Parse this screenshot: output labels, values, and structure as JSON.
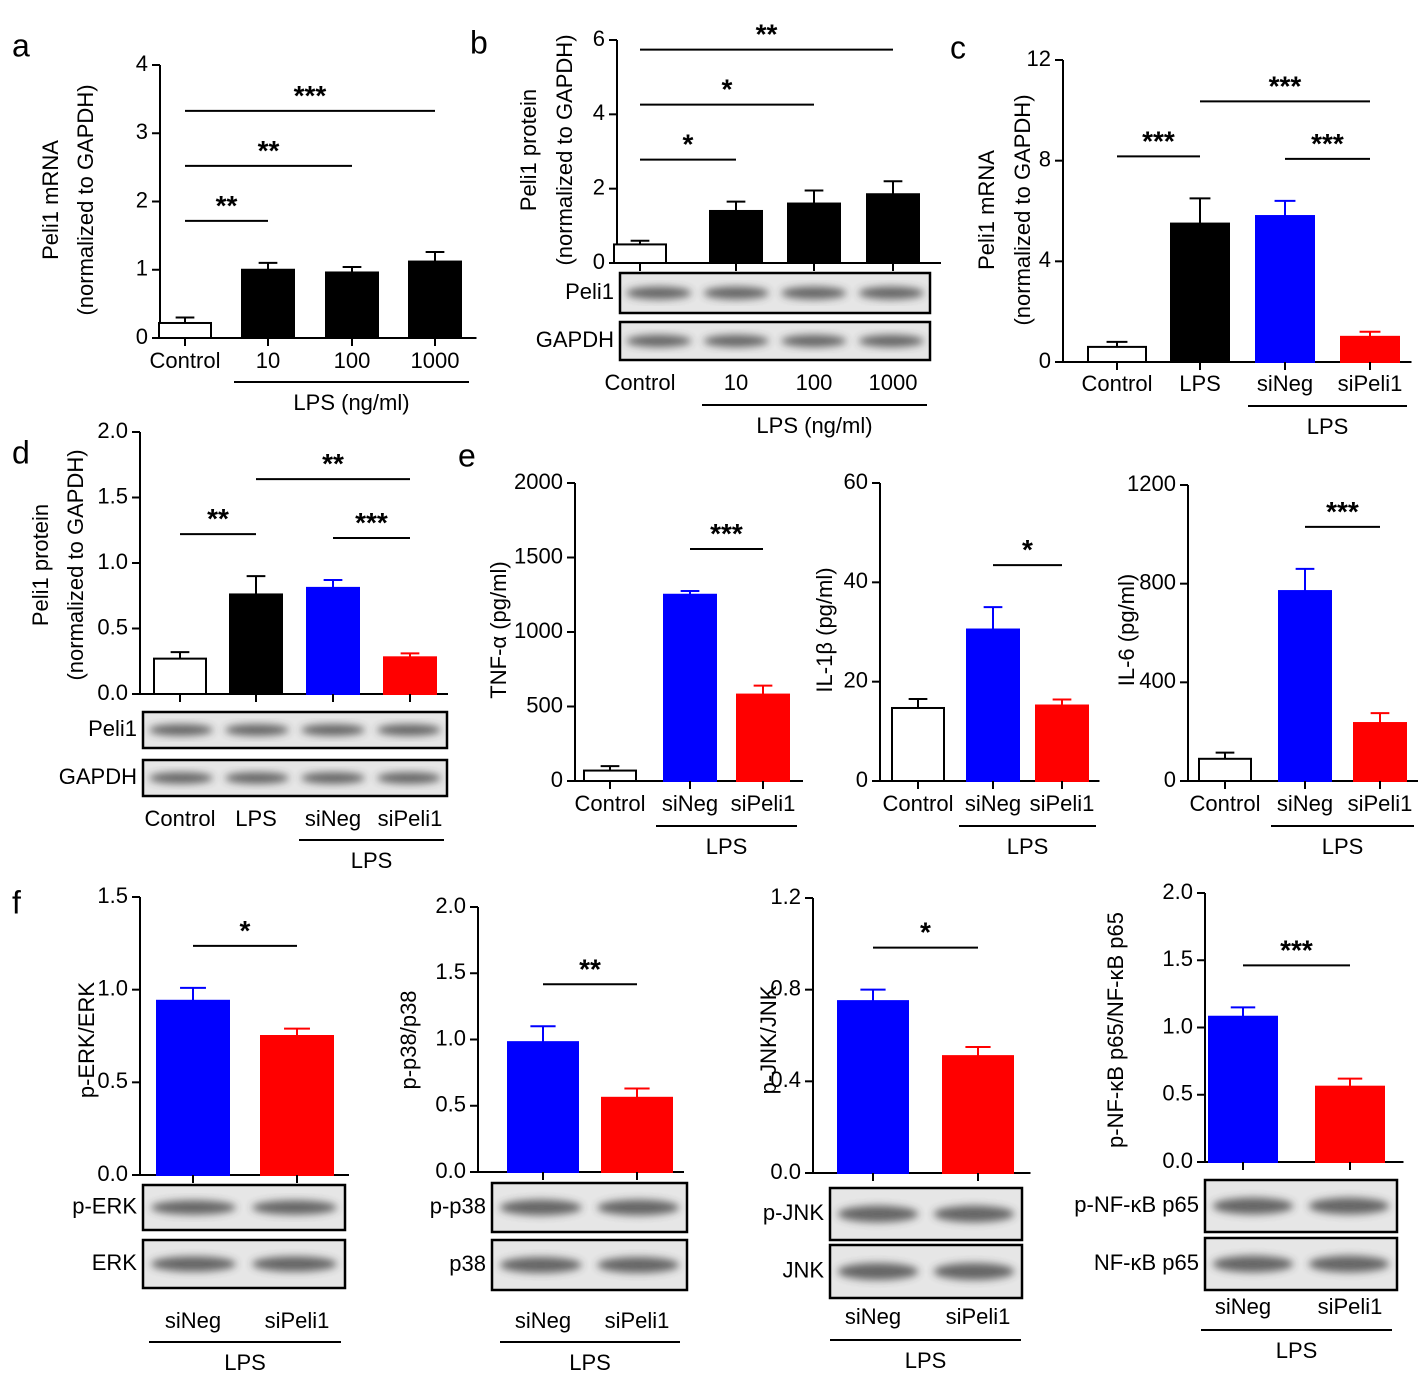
{
  "chart_data": [
    {
      "type": "bar",
      "panel": "a",
      "ylabel": [
        "Peli1 mRNA",
        "(normalized to GAPDH)"
      ],
      "categories": [
        "Control",
        "10",
        "100",
        "1000"
      ],
      "values": [
        0.22,
        1.0,
        0.96,
        1.12
      ],
      "errors": [
        0.08,
        0.1,
        0.08,
        0.14
      ],
      "colors": [
        "#ffffff",
        "#000000",
        "#000000",
        "#000000"
      ],
      "ylim": [
        0,
        4
      ],
      "yticks": [
        0,
        1,
        2,
        3,
        4
      ],
      "significance": [
        {
          "from": 0,
          "to": 1,
          "label": "**"
        },
        {
          "from": 0,
          "to": 2,
          "label": "**"
        },
        {
          "from": 0,
          "to": 3,
          "label": "***"
        }
      ],
      "group": {
        "label": "LPS (ng/ml)",
        "from": 1,
        "to": 3
      }
    },
    {
      "type": "bar",
      "panel": "b",
      "ylabel": [
        "Peli1 protein",
        "(normalized to GAPDH)"
      ],
      "categories": [
        "Control",
        "10",
        "100",
        "1000"
      ],
      "values": [
        0.5,
        1.4,
        1.6,
        1.85
      ],
      "errors": [
        0.1,
        0.25,
        0.35,
        0.35
      ],
      "colors": [
        "#ffffff",
        "#000000",
        "#000000",
        "#000000"
      ],
      "ylim": [
        0,
        6
      ],
      "yticks": [
        0,
        2,
        4,
        6
      ],
      "significance": [
        {
          "from": 0,
          "to": 1,
          "label": "*"
        },
        {
          "from": 0,
          "to": 2,
          "label": "*"
        },
        {
          "from": 0,
          "to": 3,
          "label": "**"
        }
      ],
      "group": {
        "label": "LPS (ng/ml)",
        "from": 1,
        "to": 3
      },
      "blots": [
        "Peli1",
        "GAPDH"
      ]
    },
    {
      "type": "bar",
      "panel": "c",
      "ylabel": [
        "Peli1 mRNA",
        "(normalized to GAPDH)"
      ],
      "categories": [
        "Control",
        "LPS",
        "siNeg",
        "siPeli1"
      ],
      "values": [
        0.6,
        5.5,
        5.8,
        1.0
      ],
      "errors": [
        0.2,
        1.0,
        0.6,
        0.2
      ],
      "colors": [
        "#ffffff",
        "#000000",
        "#0000ff",
        "#ff0000"
      ],
      "ylim": [
        0,
        12
      ],
      "yticks": [
        0,
        4,
        8,
        12
      ],
      "significance": [
        {
          "from": 0,
          "to": 1,
          "label": "***"
        },
        {
          "from": 2,
          "to": 3,
          "label": "***"
        },
        {
          "from": 1,
          "to": 3,
          "label": "***"
        }
      ],
      "group": {
        "label": "LPS",
        "from": 2,
        "to": 3
      }
    },
    {
      "type": "bar",
      "panel": "d",
      "ylabel": [
        "Peli1 protein",
        "(normalized to GAPDH)"
      ],
      "categories": [
        "Control",
        "LPS",
        "siNeg",
        "siPeli1"
      ],
      "values": [
        0.27,
        0.76,
        0.81,
        0.28
      ],
      "errors": [
        0.05,
        0.14,
        0.06,
        0.03
      ],
      "colors": [
        "#ffffff",
        "#000000",
        "#0000ff",
        "#ff0000"
      ],
      "ylim": [
        0,
        2
      ],
      "yticks": [
        {
          "value": 0,
          "label": "0.0"
        },
        0.5,
        {
          "value": 1,
          "label": "1.0"
        },
        1.5,
        {
          "value": 2,
          "label": "2.0"
        }
      ],
      "significance": [
        {
          "from": 0,
          "to": 1,
          "label": "**"
        },
        {
          "from": 2,
          "to": 3,
          "label": "***"
        },
        {
          "from": 1,
          "to": 3,
          "label": "**"
        }
      ],
      "group": {
        "label": "LPS",
        "from": 2,
        "to": 3
      },
      "blots": [
        "Peli1",
        "GAPDH"
      ]
    },
    {
      "type": "bar",
      "panel": "e",
      "ylabel": [
        "TNF-α (pg/ml)"
      ],
      "categories": [
        "Control",
        "siNeg",
        "siPeli1"
      ],
      "values": [
        70,
        1250,
        580
      ],
      "errors": [
        30,
        25,
        60
      ],
      "colors": [
        "#ffffff",
        "#0000ff",
        "#ff0000"
      ],
      "ylim": [
        0,
        2000
      ],
      "yticks": [
        0,
        500,
        1000,
        1500,
        2000
      ],
      "significance": [
        {
          "from": 1,
          "to": 2,
          "label": "***"
        }
      ],
      "group": {
        "label": "LPS",
        "from": 1,
        "to": 2
      }
    },
    {
      "type": "bar",
      "ylabel": [
        "IL-1β (pg/ml)"
      ],
      "categories": [
        "Control",
        "siNeg",
        "siPeli1"
      ],
      "values": [
        14.7,
        30.5,
        15.2
      ],
      "errors": [
        1.8,
        4.5,
        1.2
      ],
      "colors": [
        "#ffffff",
        "#0000ff",
        "#ff0000"
      ],
      "ylim": [
        0,
        60
      ],
      "yticks": [
        0,
        20,
        40,
        60
      ],
      "significance": [
        {
          "from": 1,
          "to": 2,
          "label": "*"
        }
      ],
      "group": {
        "label": "LPS",
        "from": 1,
        "to": 2
      }
    },
    {
      "type": "bar",
      "ylabel": [
        "IL-6 (pg/ml)"
      ],
      "categories": [
        "Control",
        "siNeg",
        "siPeli1"
      ],
      "values": [
        90,
        770,
        235
      ],
      "errors": [
        25,
        90,
        40
      ],
      "colors": [
        "#ffffff",
        "#0000ff",
        "#ff0000"
      ],
      "ylim": [
        0,
        1200
      ],
      "yticks": [
        0,
        400,
        800,
        1200
      ],
      "significance": [
        {
          "from": 1,
          "to": 2,
          "label": "***"
        }
      ],
      "group": {
        "label": "LPS",
        "from": 1,
        "to": 2
      }
    },
    {
      "type": "bar",
      "panel": "f",
      "ylabel": [
        "p-ERK/ERK"
      ],
      "categories": [
        "siNeg",
        "siPeli1"
      ],
      "values": [
        0.94,
        0.75
      ],
      "errors": [
        0.07,
        0.04
      ],
      "colors": [
        "#0000ff",
        "#ff0000"
      ],
      "ylim": [
        0,
        1.5
      ],
      "yticks": [
        {
          "value": 0,
          "label": "0.0"
        },
        0.5,
        {
          "value": 1,
          "label": "1.0"
        },
        1.5
      ],
      "significance": [
        {
          "from": 0,
          "to": 1,
          "label": "*"
        }
      ],
      "group": {
        "label": "LPS",
        "from": 0,
        "to": 1
      },
      "blots": [
        "p-ERK",
        "ERK"
      ]
    },
    {
      "type": "bar",
      "ylabel": [
        "p-p38/p38"
      ],
      "categories": [
        "siNeg",
        "siPeli1"
      ],
      "values": [
        0.98,
        0.56
      ],
      "errors": [
        0.12,
        0.07
      ],
      "colors": [
        "#0000ff",
        "#ff0000"
      ],
      "ylim": [
        0,
        2
      ],
      "yticks": [
        {
          "value": 0,
          "label": "0.0"
        },
        0.5,
        {
          "value": 1,
          "label": "1.0"
        },
        1.5,
        {
          "value": 2,
          "label": "2.0"
        }
      ],
      "significance": [
        {
          "from": 0,
          "to": 1,
          "label": "**"
        }
      ],
      "group": {
        "label": "LPS",
        "from": 0,
        "to": 1
      },
      "blots": [
        "p-p38",
        "p38"
      ]
    },
    {
      "type": "bar",
      "ylabel": [
        "p-JNK/JNK"
      ],
      "categories": [
        "siNeg",
        "siPeli1"
      ],
      "values": [
        0.75,
        0.51
      ],
      "errors": [
        0.05,
        0.04
      ],
      "colors": [
        "#0000ff",
        "#ff0000"
      ],
      "ylim": [
        0,
        1.2
      ],
      "yticks": [
        {
          "value": 0,
          "label": "0.0"
        },
        0.4,
        0.8,
        1.2
      ],
      "significance": [
        {
          "from": 0,
          "to": 1,
          "label": "*"
        }
      ],
      "group": {
        "label": "LPS",
        "from": 0,
        "to": 1
      },
      "blots": [
        "p-JNK",
        "JNK"
      ]
    },
    {
      "type": "bar",
      "ylabel": [
        "p-NF-κB p65/NF-κB p65"
      ],
      "categories": [
        "siNeg",
        "siPeli1"
      ],
      "values": [
        1.08,
        0.56
      ],
      "errors": [
        0.07,
        0.06
      ],
      "colors": [
        "#0000ff",
        "#ff0000"
      ],
      "ylim": [
        0,
        2
      ],
      "yticks": [
        {
          "value": 0,
          "label": "0.0"
        },
        0.5,
        {
          "value": 1,
          "label": "1.0"
        },
        1.5,
        {
          "value": 2,
          "label": "2.0"
        }
      ],
      "significance": [
        {
          "from": 0,
          "to": 1,
          "label": "***"
        }
      ],
      "group": {
        "label": "LPS",
        "from": 0,
        "to": 1
      },
      "blots": [
        "p-NF-κB p65",
        "NF-κB p65"
      ]
    }
  ]
}
